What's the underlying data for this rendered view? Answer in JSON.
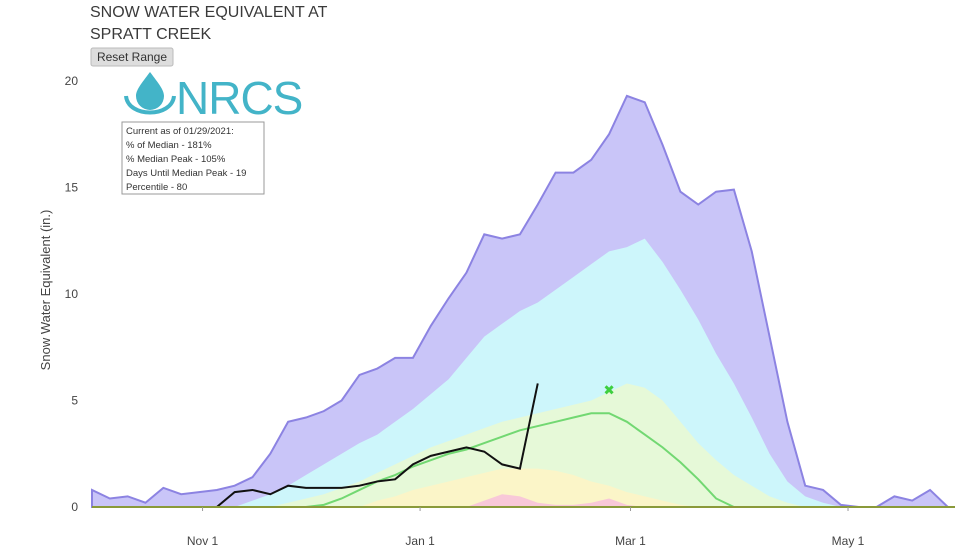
{
  "chart_data": {
    "type": "area",
    "title": [
      "SNOW WATER EQUIVALENT AT",
      "SPRATT CREEK"
    ],
    "reset_button": "Reset Range",
    "logo": "NRCS",
    "info_box": [
      "Current as of 01/29/2021:",
      "% of Median - 181%",
      "% Median Peak - 105%",
      "Days Until Median Peak - 19",
      "Percentile - 80"
    ],
    "y_label": "Snow Water Equivalent (in.)",
    "xlim": [
      0,
      242
    ],
    "xticks": [
      {
        "value": 31,
        "label": "Nov 1"
      },
      {
        "value": 92,
        "label": "Jan 1"
      },
      {
        "value": 151,
        "label": "Mar 1"
      },
      {
        "value": 212,
        "label": "May 1"
      }
    ],
    "ylim": [
      0,
      20.75
    ],
    "yticks": [
      0,
      5,
      10,
      15,
      20
    ],
    "grid": false,
    "x": [
      0,
      5,
      10,
      15,
      20,
      25,
      30,
      35,
      40,
      45,
      50,
      55,
      60,
      65,
      70,
      75,
      80,
      85,
      90,
      95,
      100,
      105,
      110,
      115,
      120,
      125,
      130,
      135,
      140,
      145,
      150,
      155,
      160,
      165,
      170,
      175,
      180,
      185,
      190,
      195,
      200,
      205,
      210,
      215,
      220,
      225,
      230,
      235,
      240
    ],
    "series": [
      {
        "style": "area",
        "color": "#c9c5f8",
        "edge": "#8c83e2",
        "values": [
          0.8,
          0.4,
          0.5,
          0.2,
          0.9,
          0.6,
          0.7,
          0.8,
          1.0,
          1.4,
          2.5,
          4.0,
          4.2,
          4.5,
          5.0,
          6.2,
          6.5,
          7.0,
          7.0,
          8.5,
          9.8,
          11.0,
          12.8,
          12.6,
          12.8,
          14.2,
          15.7,
          15.7,
          16.3,
          17.5,
          19.3,
          19.0,
          17.0,
          14.8,
          14.2,
          14.8,
          14.9,
          12.0,
          8.0,
          4.0,
          1.0,
          0.8,
          0.1,
          0,
          0,
          0.5,
          0.3,
          0.8,
          0
        ]
      },
      {
        "style": "area",
        "color": "#cdf6fb",
        "values": [
          0,
          0,
          0,
          0,
          0,
          0,
          0,
          0,
          0,
          0.3,
          0.6,
          1.0,
          1.5,
          2.0,
          2.5,
          3.0,
          3.4,
          4.0,
          4.6,
          5.3,
          6.0,
          7.0,
          8.0,
          8.6,
          9.2,
          9.6,
          10.2,
          10.8,
          11.4,
          12.0,
          12.2,
          12.6,
          11.5,
          10.2,
          8.8,
          7.2,
          5.8,
          4.2,
          2.5,
          1.2,
          0.5,
          0.2,
          0,
          0,
          0,
          0,
          0,
          0,
          0
        ]
      },
      {
        "style": "area",
        "color": "#e6f9d8",
        "values": [
          0,
          0,
          0,
          0,
          0,
          0,
          0,
          0,
          0,
          0,
          0,
          0.2,
          0.4,
          0.6,
          0.9,
          1.2,
          1.6,
          2.0,
          2.4,
          2.8,
          3.1,
          3.4,
          3.7,
          4.0,
          4.2,
          4.4,
          4.6,
          4.8,
          5.0,
          5.4,
          5.8,
          5.6,
          5.0,
          4.0,
          3.0,
          2.2,
          1.5,
          1.0,
          0.5,
          0.2,
          0,
          0,
          0,
          0,
          0,
          0,
          0,
          0,
          0
        ]
      },
      {
        "style": "area",
        "color": "#fbf5c8",
        "values": [
          0,
          0,
          0,
          0,
          0,
          0,
          0,
          0,
          0,
          0,
          0,
          0,
          0,
          0,
          0,
          0,
          0.3,
          0.5,
          0.8,
          1.0,
          1.2,
          1.4,
          1.6,
          1.8,
          1.8,
          1.8,
          1.7,
          1.5,
          1.2,
          1.0,
          0.7,
          0.5,
          0.3,
          0.1,
          0,
          0,
          0,
          0,
          0,
          0,
          0,
          0,
          0,
          0,
          0,
          0,
          0,
          0,
          0
        ]
      },
      {
        "style": "area",
        "color": "#f8c8d8",
        "values": [
          0,
          0,
          0,
          0,
          0,
          0,
          0,
          0,
          0,
          0,
          0,
          0,
          0,
          0,
          0,
          0,
          0,
          0,
          0,
          0,
          0,
          0,
          0.3,
          0.6,
          0.5,
          0.2,
          0.1,
          0.1,
          0.2,
          0.4,
          0.1,
          0,
          0,
          0,
          0,
          0,
          0,
          0,
          0,
          0,
          0,
          0,
          0,
          0,
          0,
          0,
          0,
          0,
          0
        ]
      },
      {
        "style": "line",
        "color": "#72d872",
        "values": [
          0,
          0,
          0,
          0,
          0,
          0,
          0,
          0,
          0,
          0,
          0,
          0,
          0,
          0.1,
          0.4,
          0.8,
          1.2,
          1.5,
          1.9,
          2.2,
          2.5,
          2.7,
          3.0,
          3.3,
          3.6,
          3.8,
          4.0,
          4.2,
          4.4,
          4.4,
          4.0,
          3.4,
          2.8,
          2.1,
          1.3,
          0.4,
          0,
          0,
          0,
          0,
          0,
          0,
          0,
          0,
          0,
          0,
          0,
          0,
          0
        ]
      },
      {
        "style": "line",
        "color": "#111111",
        "values": [
          0,
          0,
          0,
          0,
          0,
          0,
          0,
          0,
          0.7,
          0.8,
          0.6,
          1.0,
          0.9,
          0.9,
          0.9,
          1.0,
          1.2,
          1.3,
          2.0,
          2.4,
          2.6,
          2.8,
          2.6,
          2.0,
          1.8,
          5.8,
          null,
          null,
          null,
          null,
          null,
          null,
          null,
          null,
          null,
          null,
          null,
          null,
          null,
          null,
          null,
          null,
          null,
          null,
          null,
          null,
          null,
          null,
          null
        ]
      }
    ],
    "markers": [
      {
        "x": 145,
        "y": 5.5,
        "color": "#3fcf3f"
      }
    ]
  }
}
